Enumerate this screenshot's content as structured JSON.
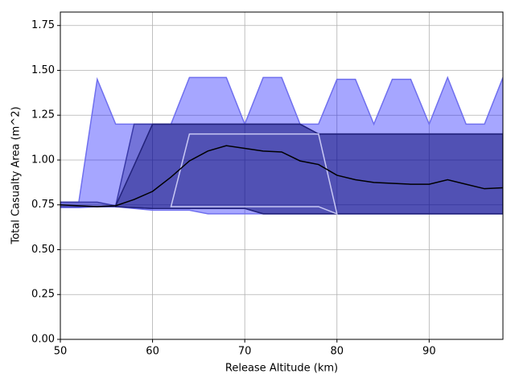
{
  "chart_data": {
    "type": "band",
    "xlabel": "Release Altitude (km)",
    "ylabel": "Total Casualty Area (m^2)",
    "x": [
      50,
      52,
      54,
      56,
      58,
      60,
      62,
      64,
      66,
      68,
      70,
      72,
      74,
      76,
      78,
      80,
      82,
      84,
      86,
      88,
      90,
      92,
      94,
      96,
      98
    ],
    "xlim": [
      50,
      98
    ],
    "ylim": [
      0,
      1.825
    ],
    "xticks": [
      50,
      60,
      70,
      80,
      90
    ],
    "yticks": [
      {
        "value": 0,
        "label": "0.00"
      },
      {
        "value": 0.25,
        "label": "0.25"
      },
      {
        "value": 0.5,
        "label": "0.50"
      },
      {
        "value": 0.75,
        "label": "0.75"
      },
      {
        "value": 1.0,
        "label": "1.00"
      },
      {
        "value": 1.25,
        "label": "1.25"
      },
      {
        "value": 1.5,
        "label": "1.50"
      },
      {
        "value": 1.75,
        "label": "1.75"
      }
    ],
    "grid": true,
    "bands": [
      {
        "color": "#0000ff",
        "opacity": 0.35,
        "edge": "#6f6fee",
        "upper": [
          0.765,
          0.765,
          1.45,
          1.2,
          1.2,
          1.2,
          1.2,
          1.46,
          1.46,
          1.46,
          1.2,
          1.46,
          1.46,
          1.2,
          1.2,
          1.45,
          1.45,
          1.2,
          1.45,
          1.45,
          1.2,
          1.46,
          1.2,
          1.2,
          1.46
        ],
        "lower": [
          0.735,
          0.735,
          0.74,
          0.74,
          0.73,
          0.72,
          0.72,
          0.72,
          0.7,
          0.7,
          0.7,
          0.7,
          0.7,
          0.7,
          0.7,
          0.7,
          0.7,
          0.7,
          0.7,
          0.7,
          0.7,
          0.7,
          0.7,
          0.7,
          0.7
        ]
      },
      {
        "color": "#000080",
        "opacity": 0.3,
        "edge": "#3a3aa8",
        "upper": [
          0.765,
          0.765,
          0.765,
          0.745,
          1.2,
          1.2,
          1.2,
          1.2,
          1.2,
          1.2,
          1.2,
          1.2,
          1.2,
          1.2,
          1.145,
          1.145,
          1.145,
          1.145,
          1.145,
          1.145,
          1.145,
          1.145,
          1.145,
          1.145,
          1.145
        ],
        "lower": [
          0.74,
          0.74,
          0.74,
          0.74,
          0.735,
          0.73,
          0.73,
          0.73,
          0.73,
          0.73,
          0.73,
          0.7,
          0.7,
          0.7,
          0.7,
          0.7,
          0.7,
          0.7,
          0.7,
          0.7,
          0.7,
          0.7,
          0.7,
          0.7,
          0.7
        ]
      },
      {
        "color": "#000060",
        "opacity": 0.3,
        "edge": "#22227a",
        "upper": [
          null,
          null,
          null,
          0.745,
          0.97,
          1.2,
          1.2,
          1.2,
          1.2,
          1.2,
          1.2,
          1.2,
          1.2,
          1.2,
          1.145,
          1.145,
          1.145,
          1.145,
          1.145,
          1.145,
          1.145,
          1.145,
          1.145,
          1.145,
          1.145
        ],
        "lower": [
          null,
          null,
          null,
          0.74,
          0.735,
          0.73,
          0.73,
          0.73,
          0.73,
          0.73,
          0.73,
          0.7,
          0.7,
          0.7,
          0.7,
          0.7,
          0.7,
          0.7,
          0.7,
          0.7,
          0.7,
          0.7,
          0.7,
          0.7,
          0.7
        ]
      },
      {
        "color": "#ffffff",
        "opacity": 0,
        "edge": "#c8c8f4",
        "upper": [
          null,
          null,
          null,
          null,
          null,
          null,
          0.74,
          1.145,
          1.145,
          1.145,
          1.145,
          1.145,
          1.145,
          1.145,
          1.145,
          0.7,
          null,
          null,
          null,
          null,
          null,
          null,
          null,
          null,
          null
        ],
        "lower": [
          null,
          null,
          null,
          null,
          null,
          null,
          0.74,
          0.74,
          0.74,
          0.74,
          0.74,
          0.74,
          0.74,
          0.74,
          0.74,
          0.7,
          null,
          null,
          null,
          null,
          null,
          null,
          null,
          null,
          null
        ]
      }
    ],
    "line": {
      "color": "#000000",
      "values": [
        0.75,
        0.745,
        0.74,
        0.745,
        0.78,
        0.825,
        0.905,
        0.995,
        1.05,
        1.08,
        1.065,
        1.05,
        1.045,
        0.995,
        0.975,
        0.915,
        0.89,
        0.875,
        0.87,
        0.865,
        0.865,
        0.89,
        0.865,
        0.84,
        0.845
      ]
    }
  }
}
